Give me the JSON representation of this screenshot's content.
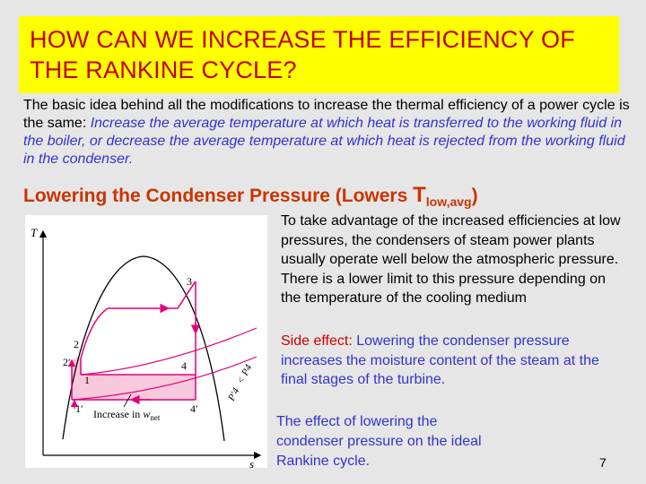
{
  "title": "HOW CAN WE INCREASE THE EFFICIENCY OF THE RANKINE CYCLE?",
  "intro": {
    "plain": "The basic idea behind all the modifications to increase the thermal efficiency of a power cycle is the same: ",
    "emphasis": "Increase the average temperature at which heat is transferred to the working fluid in the boiler, or decrease the average temperature at which heat is rejected from the working fluid in the condenser."
  },
  "subheading": {
    "text": "Lowering the Condenser Pressure (Lowers ",
    "T": "T",
    "subscript": "low,avg",
    "close": ")"
  },
  "diagram": {
    "axis_y": "T",
    "axis_x": "s",
    "state_labels": {
      "p1": "1",
      "p2": "2",
      "p3": "3",
      "p4": "4",
      "p1p": "1′",
      "p2p": "2′",
      "p4p": "4′"
    },
    "pressure_labels": {
      "p4_prime": "P′4",
      "lt": "<",
      "p4": "P4"
    },
    "shaded_label_prefix": "Increase in ",
    "shaded_label_w": "w",
    "shaded_label_sub": "net",
    "colors": {
      "line": "#e0007a",
      "shade": "#f8c8dc",
      "dome": "#000000"
    }
  },
  "body": "To take advantage of the increased efficiencies at low pressures, the condensers of steam power plants usually operate well below the atmospheric pressure. There is a lower limit to this pressure depending on the temperature of the cooling medium",
  "side_effect": {
    "label": "Side effect:",
    "text": " Lowering the condenser pressure increases the moisture content of the steam at the final stages of the turbine."
  },
  "caption": "The effect of lowering the condenser pressure on the ideal Rankine cycle.",
  "page_number": "7"
}
